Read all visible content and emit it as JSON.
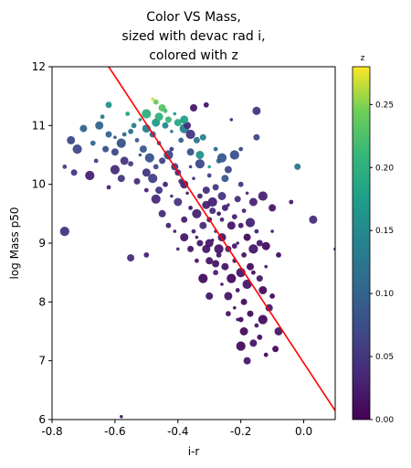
{
  "chart_data": {
    "type": "scatter",
    "title_lines": [
      "Color VS Mass,",
      "sized with devac rad i,",
      "colored with z"
    ],
    "xlabel": "i-r",
    "ylabel": "log Mass p50",
    "xlim": [
      -0.8,
      0.1
    ],
    "ylim": [
      6,
      12
    ],
    "xticks": [
      "-0.8",
      "-0.6",
      "-0.4",
      "-0.2",
      "0.0"
    ],
    "yticks": [
      "6",
      "7",
      "8",
      "9",
      "10",
      "11",
      "12"
    ],
    "colorbar": {
      "label": "z",
      "range": [
        0.0,
        0.28
      ],
      "ticks": [
        "0.00",
        "0.05",
        "0.10",
        "0.15",
        "0.20",
        "0.25"
      ],
      "colormap": "viridis"
    },
    "fit_line": {
      "color": "#ff0000",
      "points": [
        [
          -0.62,
          12.0
        ],
        [
          0.1,
          6.15
        ]
      ]
    },
    "series": [
      {
        "points": [
          [
            -0.48,
            11.45,
            0.27
          ],
          [
            -0.47,
            11.4,
            0.24
          ],
          [
            -0.45,
            11.3,
            0.23
          ],
          [
            -0.5,
            11.2,
            0.2
          ],
          [
            -0.44,
            11.25,
            0.22
          ],
          [
            -0.43,
            11.1,
            0.21
          ],
          [
            -0.47,
            11.05,
            0.17
          ],
          [
            -0.52,
            11.1,
            0.15
          ],
          [
            -0.55,
            10.9,
            0.12
          ],
          [
            -0.4,
            11.05,
            0.19
          ],
          [
            -0.38,
            10.95,
            0.14
          ],
          [
            -0.56,
            11.2,
            0.18
          ],
          [
            -0.62,
            11.35,
            0.16
          ],
          [
            -0.65,
            11.0,
            0.1
          ],
          [
            -0.6,
            10.8,
            0.09
          ],
          [
            -0.67,
            10.7,
            0.11
          ],
          [
            -0.7,
            10.95,
            0.1
          ],
          [
            -0.72,
            10.6,
            0.07
          ],
          [
            -0.64,
            11.15,
            0.13
          ],
          [
            -0.34,
            10.75,
            0.12
          ],
          [
            -0.33,
            10.5,
            0.16
          ],
          [
            -0.3,
            10.3,
            0.18
          ],
          [
            -0.27,
            10.4,
            0.1
          ],
          [
            -0.25,
            10.1,
            0.09
          ],
          [
            -0.22,
            10.5,
            0.08
          ],
          [
            -0.2,
            10.6,
            0.07
          ],
          [
            -0.15,
            10.8,
            0.07
          ],
          [
            -0.15,
            11.25,
            0.05
          ],
          [
            -0.23,
            11.1,
            0.04
          ],
          [
            -0.31,
            11.35,
            0.02
          ],
          [
            -0.37,
            11.0,
            0.04
          ],
          [
            -0.36,
            10.85,
            0.05
          ],
          [
            -0.42,
            10.6,
            0.05
          ],
          [
            -0.45,
            10.4,
            0.06
          ],
          [
            -0.5,
            10.2,
            0.05
          ],
          [
            -0.52,
            10.5,
            0.08
          ],
          [
            -0.55,
            10.35,
            0.06
          ],
          [
            -0.58,
            10.1,
            0.05
          ],
          [
            -0.6,
            10.25,
            0.04
          ],
          [
            -0.62,
            9.95,
            0.03
          ],
          [
            -0.4,
            10.2,
            0.04
          ],
          [
            -0.38,
            10.0,
            0.03
          ],
          [
            -0.35,
            10.1,
            0.05
          ],
          [
            -0.33,
            9.8,
            0.03
          ],
          [
            -0.31,
            9.9,
            0.04
          ],
          [
            -0.29,
            9.7,
            0.03
          ],
          [
            -0.27,
            9.5,
            0.02
          ],
          [
            -0.25,
            9.6,
            0.03
          ],
          [
            -0.23,
            9.3,
            0.02
          ],
          [
            -0.21,
            9.0,
            0.02
          ],
          [
            -0.19,
            8.8,
            0.02
          ],
          [
            -0.17,
            8.6,
            0.01
          ],
          [
            -0.2,
            8.5,
            0.02
          ],
          [
            -0.22,
            8.7,
            0.02
          ],
          [
            -0.24,
            8.9,
            0.03
          ],
          [
            -0.26,
            9.1,
            0.02
          ],
          [
            -0.28,
            9.2,
            0.03
          ],
          [
            -0.3,
            9.4,
            0.02
          ],
          [
            -0.32,
            9.3,
            0.04
          ],
          [
            -0.34,
            9.5,
            0.03
          ],
          [
            -0.36,
            9.6,
            0.02
          ],
          [
            -0.38,
            9.4,
            0.03
          ],
          [
            -0.4,
            9.7,
            0.05
          ],
          [
            -0.42,
            9.8,
            0.04
          ],
          [
            -0.44,
            10.0,
            0.03
          ],
          [
            -0.46,
            9.9,
            0.05
          ],
          [
            -0.48,
            10.1,
            0.06
          ],
          [
            -0.35,
            9.2,
            0.03
          ],
          [
            -0.33,
            9.0,
            0.02
          ],
          [
            -0.31,
            8.9,
            0.02
          ],
          [
            -0.29,
            9.05,
            0.03
          ],
          [
            -0.27,
            8.8,
            0.02
          ],
          [
            -0.25,
            8.6,
            0.02
          ],
          [
            -0.23,
            8.4,
            0.01
          ],
          [
            -0.21,
            8.2,
            0.02
          ],
          [
            -0.19,
            8.0,
            0.01
          ],
          [
            -0.24,
            8.1,
            0.02
          ],
          [
            -0.26,
            8.3,
            0.02
          ],
          [
            -0.28,
            8.5,
            0.03
          ],
          [
            -0.3,
            8.7,
            0.02
          ],
          [
            -0.18,
            8.3,
            0.02
          ],
          [
            -0.16,
            8.5,
            0.01
          ],
          [
            -0.14,
            8.4,
            0.02
          ],
          [
            -0.13,
            8.2,
            0.01
          ],
          [
            -0.12,
            8.6,
            0.02
          ],
          [
            -0.1,
            8.1,
            0.01
          ],
          [
            -0.11,
            7.9,
            0.02
          ],
          [
            -0.13,
            7.7,
            0.01
          ],
          [
            -0.15,
            7.6,
            0.02
          ],
          [
            -0.17,
            7.8,
            0.01
          ],
          [
            -0.19,
            7.5,
            0.01
          ],
          [
            -0.21,
            7.7,
            0.02
          ],
          [
            -0.14,
            7.4,
            0.01
          ],
          [
            -0.16,
            7.3,
            0.02
          ],
          [
            -0.2,
            7.25,
            0.01
          ],
          [
            -0.12,
            7.1,
            0.01
          ],
          [
            -0.09,
            7.2,
            0.01
          ],
          [
            -0.08,
            7.5,
            0.02
          ],
          [
            -0.22,
            7.9,
            0.01
          ],
          [
            -0.24,
            7.8,
            0.02
          ],
          [
            -0.3,
            8.1,
            0.02
          ],
          [
            -0.32,
            8.4,
            0.01
          ],
          [
            -0.34,
            8.7,
            0.02
          ],
          [
            -0.36,
            8.9,
            0.02
          ],
          [
            -0.38,
            9.1,
            0.02
          ],
          [
            -0.4,
            8.9,
            0.03
          ],
          [
            -0.43,
            9.3,
            0.03
          ],
          [
            -0.45,
            9.5,
            0.04
          ],
          [
            -0.47,
            9.75,
            0.04
          ],
          [
            -0.5,
            9.9,
            0.03
          ],
          [
            -0.53,
            10.05,
            0.04
          ],
          [
            -0.57,
            10.4,
            0.05
          ],
          [
            -0.41,
            9.2,
            0.02
          ],
          [
            -0.2,
            9.3,
            0.02
          ],
          [
            -0.18,
            9.1,
            0.01
          ],
          [
            -0.16,
            8.9,
            0.02
          ],
          [
            -0.15,
            9.2,
            0.03
          ],
          [
            -0.14,
            9.0,
            0.02
          ],
          [
            -0.12,
            8.95,
            0.01
          ],
          [
            -0.1,
            9.2,
            0.02
          ],
          [
            -0.08,
            8.8,
            0.01
          ],
          [
            -0.1,
            9.6,
            0.02
          ],
          [
            -0.13,
            9.8,
            0.03
          ],
          [
            -0.04,
            9.7,
            0.02
          ],
          [
            -0.02,
            10.3,
            0.12
          ],
          [
            0.03,
            9.4,
            0.04
          ],
          [
            0.1,
            8.9,
            0.02
          ],
          [
            -0.5,
            8.8,
            0.03
          ],
          [
            -0.55,
            8.75,
            0.04
          ],
          [
            -0.76,
            9.2,
            0.05
          ],
          [
            -0.76,
            10.3,
            0.06
          ],
          [
            -0.73,
            10.2,
            0.05
          ],
          [
            -0.74,
            10.75,
            0.07
          ],
          [
            -0.58,
            6.05,
            0.02
          ],
          [
            -0.2,
            7.7,
            0.01
          ],
          [
            -0.18,
            7.0,
            0.02
          ],
          [
            -0.27,
            8.9,
            0.02
          ],
          [
            -0.26,
            9.4,
            0.03
          ],
          [
            -0.29,
            9.55,
            0.04
          ],
          [
            -0.31,
            9.65,
            0.03
          ],
          [
            -0.37,
            9.85,
            0.03
          ],
          [
            -0.39,
            10.05,
            0.04
          ],
          [
            -0.41,
            10.3,
            0.06
          ],
          [
            -0.43,
            10.5,
            0.07
          ],
          [
            -0.46,
            10.7,
            0.09
          ],
          [
            -0.48,
            10.85,
            0.1
          ],
          [
            -0.5,
            10.95,
            0.13
          ],
          [
            -0.42,
            10.9,
            0.12
          ],
          [
            -0.39,
            10.75,
            0.1
          ],
          [
            -0.36,
            10.55,
            0.08
          ],
          [
            -0.33,
            10.35,
            0.07
          ],
          [
            -0.3,
            10.15,
            0.06
          ],
          [
            -0.28,
            9.95,
            0.05
          ],
          [
            -0.26,
            9.8,
            0.05
          ],
          [
            -0.24,
            9.65,
            0.04
          ],
          [
            -0.22,
            9.45,
            0.03
          ],
          [
            -0.6,
            10.55,
            0.07
          ],
          [
            -0.58,
            10.7,
            0.08
          ],
          [
            -0.53,
            10.75,
            0.09
          ],
          [
            -0.44,
            11.0,
            0.15
          ],
          [
            -0.46,
            11.15,
            0.2
          ],
          [
            -0.41,
            11.2,
            0.17
          ],
          [
            -0.54,
            11.0,
            0.14
          ],
          [
            -0.35,
            11.3,
            0.02
          ],
          [
            -0.68,
            10.15,
            0.03
          ],
          [
            -0.66,
            10.4,
            0.06
          ],
          [
            -0.63,
            10.6,
            0.08
          ],
          [
            -0.3,
            9.0,
            0.02
          ],
          [
            -0.34,
            9.1,
            0.02
          ],
          [
            -0.22,
            8.95,
            0.02
          ],
          [
            -0.28,
            8.65,
            0.02
          ],
          [
            -0.17,
            9.35,
            0.03
          ],
          [
            -0.19,
            9.55,
            0.03
          ],
          [
            -0.21,
            9.75,
            0.04
          ],
          [
            -0.16,
            9.7,
            0.03
          ],
          [
            -0.18,
            9.85,
            0.04
          ],
          [
            -0.2,
            10.0,
            0.05
          ],
          [
            -0.24,
            10.25,
            0.07
          ],
          [
            -0.26,
            10.45,
            0.09
          ],
          [
            -0.28,
            10.6,
            0.11
          ],
          [
            -0.32,
            10.8,
            0.14
          ],
          [
            -0.38,
            11.1,
            0.18
          ],
          [
            -0.36,
            10.3,
            0.06
          ],
          [
            -0.47,
            10.3,
            0.07
          ],
          [
            -0.51,
            10.6,
            0.09
          ],
          [
            -0.49,
            10.45,
            0.08
          ],
          [
            -0.57,
            10.85,
            0.11
          ],
          [
            -0.62,
            10.85,
            0.1
          ]
        ]
      }
    ]
  }
}
